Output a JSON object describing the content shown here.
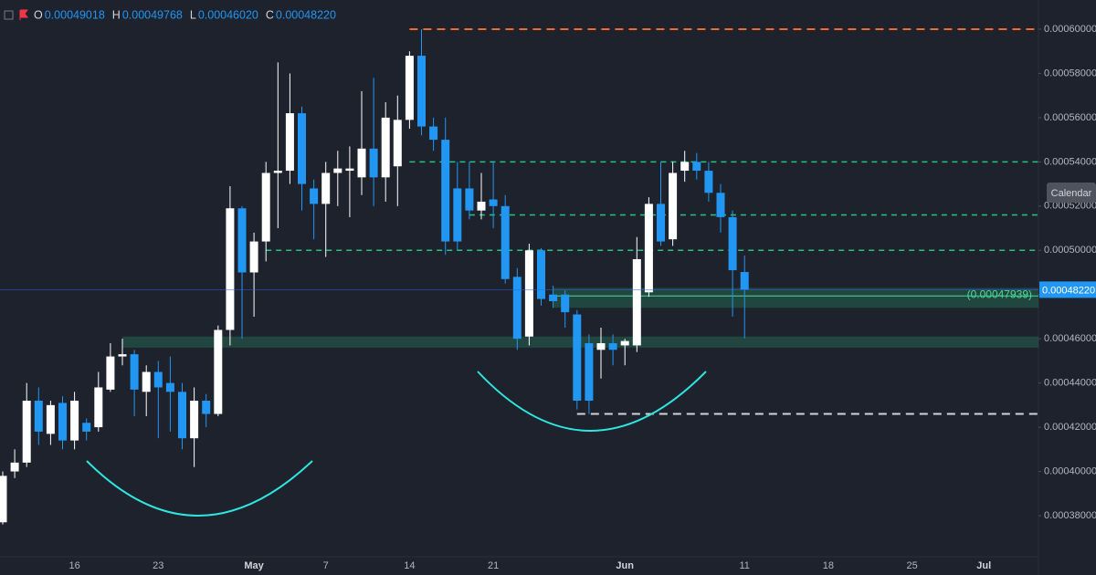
{
  "chart_data": {
    "type": "candlestick",
    "legend": [
      {
        "key": "O",
        "value": "0.00049018"
      },
      {
        "key": "H",
        "value": "0.00049768"
      },
      {
        "key": "L",
        "value": "0.00046020"
      },
      {
        "key": "C",
        "value": "0.00048220"
      }
    ],
    "button": "Calendar",
    "up_color": "#ffffff",
    "down_color": "#2196f3",
    "categories": [
      null,
      null,
      null,
      null,
      null,
      null,
      "16",
      null,
      null,
      null,
      null,
      null,
      null,
      "23",
      null,
      null,
      null,
      null,
      null,
      null,
      null,
      "May",
      null,
      null,
      null,
      null,
      null,
      "7",
      null,
      null,
      null,
      null,
      null,
      null,
      "14",
      null,
      null,
      null,
      null,
      null,
      null,
      "21",
      null,
      null,
      null,
      null,
      null,
      null,
      null,
      null,
      null,
      null,
      "Jun",
      null,
      null,
      null,
      null,
      null,
      null,
      null,
      null,
      null,
      "11",
      null,
      null,
      null,
      null,
      null,
      null,
      "18",
      null,
      null,
      null,
      null,
      null,
      null,
      "25",
      null,
      null,
      null,
      null,
      null,
      "Jul",
      null,
      null,
      null,
      null
    ],
    "open": [
      0.000377,
      0.0004,
      0.000404,
      0.000432,
      0.000417,
      0.000431,
      0.000414,
      0.000422,
      0.00042,
      0.000437,
      0.000452,
      0.000453,
      0.000436,
      0.000445,
      0.00044,
      0.000436,
      0.000415,
      0.000432,
      0.000426,
      0.000464,
      0.000519,
      0.00049,
      0.000504,
      0.000535,
      0.000536,
      0.000562,
      0.000528,
      0.000521,
      0.000535,
      0.000536,
      0.000533,
      0.000546,
      0.000533,
      0.000538,
      0.000559,
      0.000588,
      0.000556,
      0.00055,
      0.000528,
      0.000528,
      0.000518,
      0.000523,
      0.00052,
      0.000488,
      0.000461,
      0.0005,
      0.00048,
      0.00048,
      0.000471,
      0.000458,
      0.000455,
      0.000458,
      0.000457,
      0.000457,
      0.000481,
      0.000521,
      0.000505,
      0.000536,
      0.00054,
      0.000536,
      0.000526,
      0.000515,
      0.00049018,
      null,
      null,
      null,
      null,
      null,
      null,
      null,
      null,
      null,
      null,
      null,
      null,
      null,
      null,
      null,
      null,
      null,
      null,
      null,
      null,
      null,
      null,
      null,
      null
    ],
    "high": [
      0.0004,
      0.00041,
      0.00044,
      0.000438,
      0.000432,
      0.000434,
      0.000436,
      0.000424,
      0.000445,
      0.000458,
      0.00046,
      0.000455,
      0.000448,
      0.00045,
      0.000452,
      0.00044,
      0.000438,
      0.000435,
      0.000466,
      0.000529,
      0.00052,
      0.000508,
      0.00054,
      0.000585,
      0.00058,
      0.000565,
      0.000532,
      0.00054,
      0.000545,
      0.000547,
      0.000572,
      0.000578,
      0.000567,
      0.00057,
      0.00059,
      0.0006,
      0.00056,
      0.00056,
      0.00054,
      0.00054,
      0.000535,
      0.00054,
      0.000525,
      0.000492,
      0.000503,
      0.000501,
      0.000484,
      0.000482,
      0.000473,
      0.000462,
      0.000465,
      0.000462,
      0.00046,
      0.000506,
      0.000524,
      0.00054,
      0.00054,
      0.000545,
      0.000544,
      0.00054,
      0.00053,
      0.000518,
      0.00049768,
      null,
      null,
      null,
      null,
      null,
      null,
      null,
      null,
      null,
      null,
      null,
      null,
      null,
      null,
      null,
      null,
      null,
      null,
      null,
      null,
      null,
      null,
      null,
      null
    ],
    "low": [
      0.000376,
      0.000397,
      0.000402,
      0.000412,
      0.000412,
      0.00041,
      0.00041,
      0.000414,
      0.000418,
      0.000436,
      0.000448,
      0.000425,
      0.000425,
      0.000415,
      0.000418,
      0.00041,
      0.000402,
      0.00042,
      0.000425,
      0.000457,
      0.00046,
      0.00047,
      0.000495,
      0.00051,
      0.00053,
      0.000518,
      0.000505,
      0.000497,
      0.00052,
      0.000515,
      0.000525,
      0.00052,
      0.000522,
      0.00052,
      0.000555,
      0.000552,
      0.000545,
      0.000498,
      0.0005,
      0.000514,
      0.000514,
      0.00051,
      0.000485,
      0.000455,
      0.000457,
      0.000475,
      0.000474,
      0.000465,
      0.000428,
      0.000426,
      0.000442,
      0.000448,
      0.000448,
      0.000454,
      0.000479,
      0.000502,
      0.000502,
      0.000531,
      0.000532,
      0.000522,
      0.000508,
      0.00047,
      0.0004602,
      null,
      null,
      null,
      null,
      null,
      null,
      null,
      null,
      null,
      null,
      null,
      null,
      null,
      null,
      null,
      null,
      null,
      null,
      null,
      null,
      null,
      null,
      null,
      null
    ],
    "close": [
      0.000398,
      0.000404,
      0.000432,
      0.000418,
      0.00043,
      0.000414,
      0.000432,
      0.000418,
      0.000438,
      0.000452,
      0.000453,
      0.000437,
      0.000445,
      0.000438,
      0.000436,
      0.000415,
      0.000432,
      0.000426,
      0.000464,
      0.000519,
      0.00049,
      0.000504,
      0.000535,
      0.000536,
      0.000562,
      0.00053,
      0.000521,
      0.000535,
      0.000537,
      0.000537,
      0.000546,
      0.000533,
      0.00056,
      0.000559,
      0.000588,
      0.000556,
      0.00055,
      0.000504,
      0.000504,
      0.000518,
      0.000522,
      0.00052,
      0.000487,
      0.00046,
      0.0005,
      0.000478,
      0.000477,
      0.000472,
      0.000432,
      0.000432,
      0.000458,
      0.000455,
      0.000459,
      0.000496,
      0.000521,
      0.000504,
      0.000535,
      0.00054,
      0.000536,
      0.000526,
      0.000515,
      0.000491,
      0.0004822,
      null,
      null,
      null,
      null,
      null,
      null,
      null,
      null,
      null,
      null,
      null,
      null,
      null,
      null,
      null,
      null,
      null,
      null,
      null,
      null,
      null,
      null,
      null,
      null
    ],
    "ylim": [
      0.00036142,
      0.00061321
    ],
    "yticks": [
      {
        "value": 0.0006,
        "label": "0.00060000"
      },
      {
        "value": 0.00058,
        "label": "0.00058000"
      },
      {
        "value": 0.00056,
        "label": "0.00056000"
      },
      {
        "value": 0.00054,
        "label": "0.00054000"
      },
      {
        "value": 0.00052,
        "label": "0.00052000"
      },
      {
        "value": 0.0005,
        "label": "0.00050000"
      },
      {
        "value": 0.00048,
        "label": "0.00048000"
      },
      {
        "value": 0.00046,
        "label": "0.00046000"
      },
      {
        "value": 0.00044,
        "label": "0.00044000"
      },
      {
        "value": 0.00042,
        "label": "0.00042000"
      },
      {
        "value": 0.0004,
        "label": "0.00040000"
      },
      {
        "value": 0.00038,
        "label": "0.00038000"
      }
    ],
    "levels": [
      {
        "value": 0.0006,
        "color": "#f26b2b"
      },
      {
        "value": 0.00054,
        "color": "#26c281"
      },
      {
        "value": 0.000516,
        "color": "#26c281"
      },
      {
        "value": 0.0005,
        "color": "#26c281"
      },
      {
        "value": 0.000426,
        "color": "#d1d4dc"
      }
    ],
    "zones": [
      {
        "from": 0.000456,
        "to": 0.000461
      },
      {
        "from": 0.000474,
        "to": 0.000483
      }
    ],
    "marker_line": {
      "value": 0.00047939,
      "label": "(0.00047939)",
      "color": "#4cd99a"
    }
  }
}
